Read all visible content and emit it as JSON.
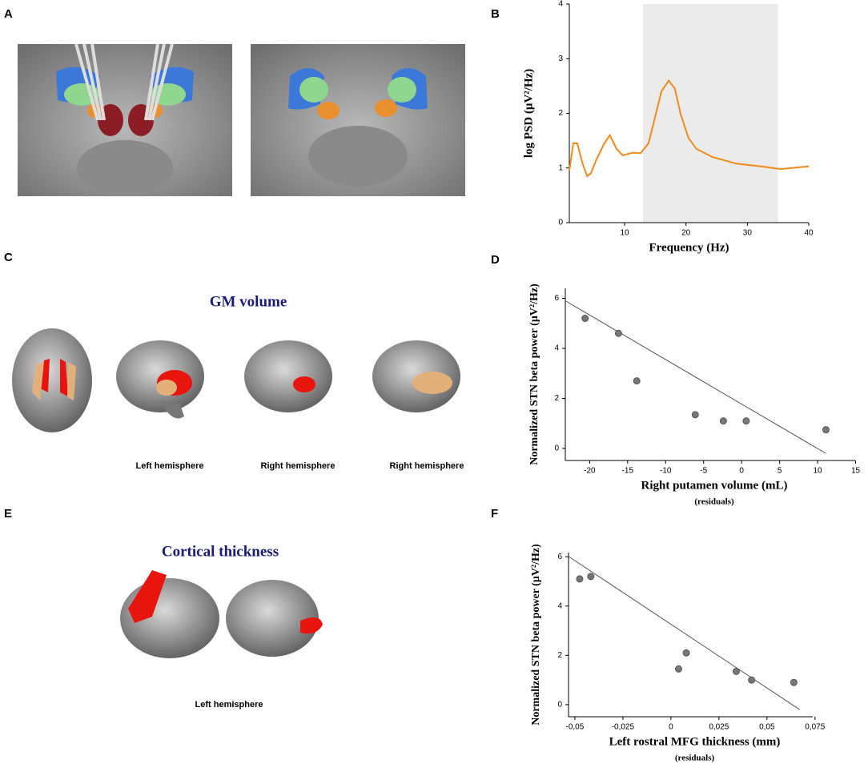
{
  "labels": [
    "A",
    "B",
    "C",
    "D",
    "E",
    "F"
  ],
  "gm_title": "GM volume",
  "gm_captions": [
    "Left hemisphere",
    "Right hemisphere",
    "Right hemisphere"
  ],
  "ct_title": "Cortical thickness",
  "ct_caption": "Left hemisphere",
  "chart_data": [
    {
      "type": "line",
      "xlabel": "Frequency (Hz)",
      "ylabel": "log PSD (μV²/Hz)",
      "x": [
        1,
        1.65,
        2.3,
        3.1,
        3.9,
        4.5,
        5.4,
        6.7,
        7.6,
        8.7,
        9.7,
        11.3,
        12.6,
        13.9,
        14.9,
        16,
        17.2,
        18.2,
        19.1,
        20.4,
        21.7,
        24.3,
        28.2,
        32.2,
        35.4,
        40
      ],
      "values": [
        0.95,
        1.45,
        1.45,
        1.1,
        0.85,
        0.9,
        1.15,
        1.45,
        1.6,
        1.35,
        1.23,
        1.28,
        1.27,
        1.45,
        1.9,
        2.4,
        2.6,
        2.45,
        2.0,
        1.55,
        1.35,
        1.2,
        1.08,
        1.03,
        0.98,
        1.03
      ],
      "color": "#f08a1c",
      "band": [
        13,
        35
      ],
      "band_color": "#ebebeb",
      "xlim": [
        1,
        40
      ],
      "ylim": [
        0,
        4
      ],
      "xticks": [
        10,
        20,
        30,
        40
      ],
      "yticks": [
        0,
        1,
        2,
        3,
        4
      ]
    },
    {
      "type": "scatter",
      "xlabel": "Right putamen volume (mL)",
      "xlabel_note": "(residuals)",
      "ylabel": "Normalized STN beta power (μV²/Hz)",
      "x": [
        -20.6,
        -16.2,
        -13.8,
        -6.1,
        -2.4,
        0.6,
        11.1
      ],
      "values": [
        5.2,
        4.6,
        2.7,
        1.35,
        1.1,
        1.1,
        0.75
      ],
      "color": "#777777",
      "fit": {
        "x": [
          -23.2,
          11.1
        ],
        "y": [
          5.9,
          -0.2
        ]
      },
      "xlim": [
        -23.2,
        16
      ],
      "ylim": [
        -0.48,
        6.4
      ],
      "xticks": [
        -20,
        -15,
        -10,
        -5,
        0,
        5,
        10,
        15
      ],
      "yticks": [
        0,
        2,
        4,
        6
      ]
    },
    {
      "type": "scatter",
      "xlabel": "Left rostral MFG thickness (mm)",
      "xlabel_note": "(residuals)",
      "ylabel": "Normalized STN beta power (μV²/Hz)",
      "x": [
        -0.0475,
        -0.0417,
        0.004,
        0.008,
        0.034,
        0.042,
        0.064
      ],
      "values": [
        5.1,
        5.2,
        1.45,
        2.1,
        1.35,
        1.0,
        0.9
      ],
      "color": "#777777",
      "fit": {
        "x": [
          -0.053,
          0.067
        ],
        "y": [
          6.0,
          -0.2
        ]
      },
      "xlim": [
        -0.0533,
        0.078
      ],
      "ylim": [
        -0.49,
        6.17
      ],
      "xticks": [
        {
          "value": -0.05,
          "label": "-0,05"
        },
        {
          "value": -0.025,
          "label": "-0,025"
        },
        0,
        {
          "value": 0.025,
          "label": "0,025"
        },
        {
          "value": 0.05,
          "label": "0,05"
        },
        {
          "value": 0.075,
          "label": "0,075"
        }
      ],
      "yticks": [
        0,
        2,
        4,
        6
      ]
    }
  ]
}
